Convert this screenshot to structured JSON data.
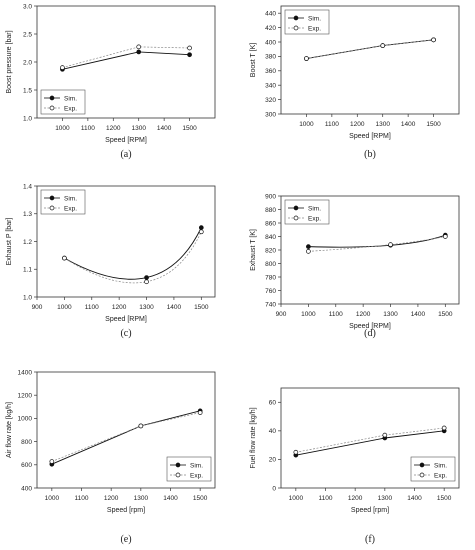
{
  "chart_data": [
    {
      "type": "line",
      "panel_label": "(a)",
      "xlabel": "Speed [RPM]",
      "ylabel": "Boost pressure [bar]",
      "xlim": [
        900,
        1600
      ],
      "ylim": [
        1.0,
        3.0
      ],
      "xticks": [
        "1000",
        "1100",
        "1200",
        "1300",
        "1400",
        "1500"
      ],
      "yticks": [
        "1.0",
        "1.5",
        "2.0",
        "2.5",
        "3.0"
      ],
      "legend_position": "bottom-left",
      "series": [
        {
          "name": "Sim.",
          "x": [
            1000,
            1300,
            1500
          ],
          "y": [
            1.87,
            2.18,
            2.13
          ]
        },
        {
          "name": "Exp.",
          "x": [
            1000,
            1300,
            1500
          ],
          "y": [
            1.9,
            2.27,
            2.25
          ]
        }
      ]
    },
    {
      "type": "line",
      "panel_label": "(b)",
      "xlabel": "Speed [RPM]",
      "ylabel": "Boost T [K]",
      "xlim": [
        900,
        1600
      ],
      "ylim": [
        300,
        450
      ],
      "xticks": [
        "1000",
        "1100",
        "1200",
        "1300",
        "1400",
        "1500"
      ],
      "yticks": [
        "300",
        "320",
        "340",
        "360",
        "380",
        "400",
        "420",
        "440"
      ],
      "legend_position": "top-left",
      "series": [
        {
          "name": "Sim.",
          "x": [
            1000,
            1300,
            1500
          ],
          "y": [
            377,
            395,
            403
          ]
        },
        {
          "name": "Exp.",
          "x": [
            1000,
            1300,
            1500
          ],
          "y": [
            377,
            395,
            403
          ]
        }
      ]
    },
    {
      "type": "line",
      "panel_label": "(c)",
      "xlabel": "Speed [RPM]",
      "ylabel": "Exhaust P [bar]",
      "xlim": [
        900,
        1550
      ],
      "ylim": [
        1.0,
        1.4
      ],
      "xticks": [
        "900",
        "1000",
        "1100",
        "1200",
        "1300",
        "1400",
        "1500"
      ],
      "yticks": [
        "1.0",
        "1.1",
        "1.2",
        "1.3",
        "1.4"
      ],
      "legend_position": "top-left",
      "series": [
        {
          "name": "Sim.",
          "x": [
            1000,
            1300,
            1500
          ],
          "y": [
            1.14,
            1.07,
            1.25
          ]
        },
        {
          "name": "Exp.",
          "x": [
            1000,
            1300,
            1500
          ],
          "y": [
            1.14,
            1.055,
            1.235
          ]
        }
      ]
    },
    {
      "type": "line",
      "panel_label": "(d)",
      "xlabel": "Speed [RPM]",
      "ylabel": "Exhaust T [K]",
      "xlim": [
        900,
        1550
      ],
      "ylim": [
        740,
        900
      ],
      "xticks": [
        "900",
        "1000",
        "1100",
        "1200",
        "1300",
        "1400",
        "1500"
      ],
      "yticks": [
        "740",
        "760",
        "780",
        "800",
        "820",
        "840",
        "860",
        "880",
        "900"
      ],
      "legend_position": "top-left",
      "series": [
        {
          "name": "Sim.",
          "x": [
            1000,
            1300,
            1500
          ],
          "y": [
            825,
            827,
            842
          ]
        },
        {
          "name": "Exp.",
          "x": [
            1000,
            1300,
            1500
          ],
          "y": [
            818,
            828,
            840
          ]
        }
      ]
    },
    {
      "type": "line",
      "panel_label": "(e)",
      "xlabel": "Speed [rpm]",
      "ylabel": "Air flow rate [kg/h]",
      "xlim": [
        950,
        1550
      ],
      "ylim": [
        400,
        1400
      ],
      "xticks": [
        "1000",
        "1100",
        "1200",
        "1300",
        "1400",
        "1500"
      ],
      "yticks": [
        "400",
        "600",
        "800",
        "1000",
        "1200",
        "1400"
      ],
      "legend_position": "bottom-right",
      "series": [
        {
          "name": "Sim.",
          "x": [
            1000,
            1300,
            1500
          ],
          "y": [
            605,
            935,
            1065
          ]
        },
        {
          "name": "Exp.",
          "x": [
            1000,
            1300,
            1500
          ],
          "y": [
            628,
            935,
            1050
          ]
        }
      ]
    },
    {
      "type": "line",
      "panel_label": "(f)",
      "xlabel": "Speed [rpm]",
      "ylabel": "Fuel flow rate [kg/h]",
      "xlim": [
        950,
        1550
      ],
      "ylim": [
        0,
        70
      ],
      "xticks": [
        "1000",
        "1100",
        "1200",
        "1300",
        "1400",
        "1500"
      ],
      "yticks": [
        "0",
        "20",
        "40",
        "60"
      ],
      "legend_position": "bottom-right",
      "series": [
        {
          "name": "Sim.",
          "x": [
            1000,
            1300,
            1500
          ],
          "y": [
            23,
            35,
            40
          ]
        },
        {
          "name": "Exp.",
          "x": [
            1000,
            1300,
            1500
          ],
          "y": [
            25,
            37,
            42
          ]
        }
      ]
    }
  ]
}
